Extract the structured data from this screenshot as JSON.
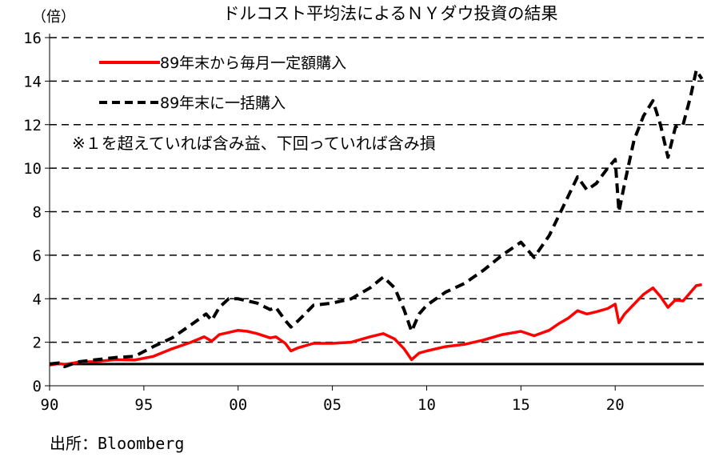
{
  "chart_data": {
    "type": "line",
    "title": "ドルコスト平均法によるＮＹダウ投資の結果",
    "ylabel": "（倍）",
    "ylim": [
      0,
      16
    ],
    "yticks": [
      0,
      2,
      4,
      6,
      8,
      10,
      12,
      14,
      16
    ],
    "xlim": [
      1990,
      2024.7
    ],
    "xticks": [
      {
        "value": 1990,
        "label": "90"
      },
      {
        "value": 1995,
        "label": "95"
      },
      {
        "value": 2000,
        "label": "00"
      },
      {
        "value": 2005,
        "label": "05"
      },
      {
        "value": 2010,
        "label": "10"
      },
      {
        "value": 2015,
        "label": "15"
      },
      {
        "value": 2020,
        "label": "20"
      }
    ],
    "grid": "horizontal dashed",
    "legend_position": "top-left",
    "annotation": "※１を超えていれば含み益、下回っていれば含み損",
    "reference_line": 1,
    "series": [
      {
        "name": "89年末から毎月一定額購入",
        "color": "#ff0000",
        "style": "solid",
        "points": [
          [
            1990.0,
            0.95
          ],
          [
            1990.5,
            1.02
          ],
          [
            1990.8,
            0.98
          ],
          [
            1991.5,
            1.08
          ],
          [
            1992.5,
            1.12
          ],
          [
            1993.5,
            1.2
          ],
          [
            1994.5,
            1.18
          ],
          [
            1995.5,
            1.35
          ],
          [
            1996.5,
            1.7
          ],
          [
            1997.5,
            2.0
          ],
          [
            1998.2,
            2.25
          ],
          [
            1998.6,
            2.05
          ],
          [
            1999.0,
            2.35
          ],
          [
            1999.5,
            2.45
          ],
          [
            2000.0,
            2.55
          ],
          [
            2000.5,
            2.5
          ],
          [
            2001.0,
            2.4
          ],
          [
            2001.7,
            2.2
          ],
          [
            2002.0,
            2.25
          ],
          [
            2002.5,
            1.95
          ],
          [
            2002.8,
            1.6
          ],
          [
            2003.2,
            1.75
          ],
          [
            2004.0,
            1.95
          ],
          [
            2005.0,
            1.95
          ],
          [
            2006.0,
            2.0
          ],
          [
            2007.0,
            2.25
          ],
          [
            2007.7,
            2.4
          ],
          [
            2008.3,
            2.15
          ],
          [
            2008.8,
            1.7
          ],
          [
            2009.2,
            1.2
          ],
          [
            2009.6,
            1.5
          ],
          [
            2010.0,
            1.6
          ],
          [
            2011.0,
            1.8
          ],
          [
            2012.0,
            1.9
          ],
          [
            2013.0,
            2.1
          ],
          [
            2014.0,
            2.35
          ],
          [
            2015.0,
            2.5
          ],
          [
            2015.7,
            2.3
          ],
          [
            2016.5,
            2.55
          ],
          [
            2017.0,
            2.85
          ],
          [
            2017.5,
            3.1
          ],
          [
            2018.0,
            3.45
          ],
          [
            2018.5,
            3.3
          ],
          [
            2019.0,
            3.4
          ],
          [
            2019.6,
            3.55
          ],
          [
            2020.0,
            3.75
          ],
          [
            2020.2,
            2.9
          ],
          [
            2020.5,
            3.3
          ],
          [
            2021.0,
            3.75
          ],
          [
            2021.5,
            4.2
          ],
          [
            2022.0,
            4.5
          ],
          [
            2022.4,
            4.1
          ],
          [
            2022.8,
            3.6
          ],
          [
            2023.2,
            3.95
          ],
          [
            2023.6,
            3.9
          ],
          [
            2024.0,
            4.3
          ],
          [
            2024.3,
            4.6
          ],
          [
            2024.6,
            4.65
          ]
        ]
      },
      {
        "name": "89年末に一括購入",
        "color": "#000000",
        "style": "dashed",
        "points": [
          [
            1990.0,
            1.0
          ],
          [
            1990.5,
            1.05
          ],
          [
            1990.8,
            0.88
          ],
          [
            1991.5,
            1.1
          ],
          [
            1992.5,
            1.2
          ],
          [
            1993.5,
            1.3
          ],
          [
            1994.5,
            1.35
          ],
          [
            1995.5,
            1.8
          ],
          [
            1996.5,
            2.2
          ],
          [
            1997.5,
            2.8
          ],
          [
            1998.3,
            3.3
          ],
          [
            1998.6,
            3.0
          ],
          [
            1999.0,
            3.6
          ],
          [
            1999.5,
            4.0
          ],
          [
            2000.0,
            4.0
          ],
          [
            2000.5,
            3.9
          ],
          [
            2001.0,
            3.8
          ],
          [
            2001.7,
            3.5
          ],
          [
            2002.0,
            3.6
          ],
          [
            2002.5,
            3.0
          ],
          [
            2002.8,
            2.7
          ],
          [
            2003.2,
            3.0
          ],
          [
            2004.0,
            3.7
          ],
          [
            2005.0,
            3.8
          ],
          [
            2006.0,
            4.0
          ],
          [
            2007.0,
            4.5
          ],
          [
            2007.7,
            5.0
          ],
          [
            2008.3,
            4.5
          ],
          [
            2008.8,
            3.5
          ],
          [
            2009.2,
            2.5
          ],
          [
            2009.6,
            3.3
          ],
          [
            2010.0,
            3.7
          ],
          [
            2011.0,
            4.3
          ],
          [
            2012.0,
            4.7
          ],
          [
            2013.0,
            5.3
          ],
          [
            2014.0,
            6.0
          ],
          [
            2015.0,
            6.6
          ],
          [
            2015.7,
            5.9
          ],
          [
            2016.5,
            6.9
          ],
          [
            2017.0,
            7.8
          ],
          [
            2017.5,
            8.7
          ],
          [
            2018.0,
            9.6
          ],
          [
            2018.5,
            9.0
          ],
          [
            2019.0,
            9.3
          ],
          [
            2019.6,
            10.0
          ],
          [
            2020.0,
            10.4
          ],
          [
            2020.2,
            8.0
          ],
          [
            2020.5,
            9.3
          ],
          [
            2021.0,
            11.3
          ],
          [
            2021.5,
            12.4
          ],
          [
            2022.0,
            13.1
          ],
          [
            2022.4,
            12.0
          ],
          [
            2022.8,
            10.5
          ],
          [
            2023.2,
            11.9
          ],
          [
            2023.6,
            12.0
          ],
          [
            2024.0,
            13.3
          ],
          [
            2024.3,
            14.5
          ],
          [
            2024.6,
            14.1
          ]
        ]
      }
    ]
  },
  "source": "出所：Bloomberg"
}
